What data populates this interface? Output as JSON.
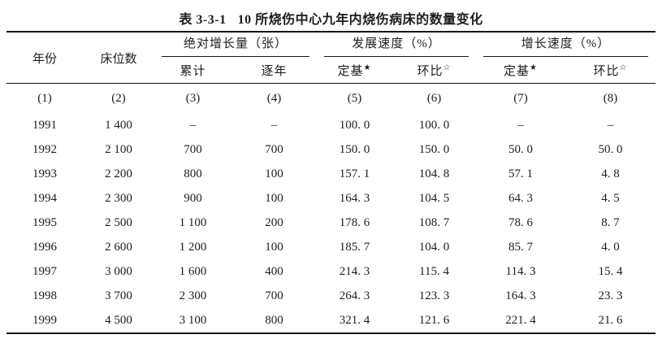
{
  "title": {
    "label": "表 3-3-1",
    "text": "10 所烧伤中心九年内烧伤病床的数量变化"
  },
  "table": {
    "stub_headers": [
      "年份",
      "床位数"
    ],
    "groups": [
      {
        "label": "绝对增长量（张）",
        "subs": [
          {
            "text": "累计",
            "star": ""
          },
          {
            "text": "逐年",
            "star": ""
          }
        ]
      },
      {
        "label": "发展速度（%）",
        "subs": [
          {
            "text": "定基",
            "star": "★"
          },
          {
            "text": "环比",
            "star": "☆"
          }
        ]
      },
      {
        "label": "增长速度（%）",
        "subs": [
          {
            "text": "定基",
            "star": "★"
          },
          {
            "text": "环比",
            "star": "☆"
          }
        ]
      }
    ],
    "col_indices": [
      "(1)",
      "(2)",
      "(3)",
      "(4)",
      "(5)",
      "(6)",
      "(7)",
      "(8)"
    ],
    "rows": [
      [
        "1991",
        "1 400",
        "–",
        "–",
        "100. 0",
        "100. 0",
        "–",
        "–"
      ],
      [
        "1992",
        "2 100",
        "700",
        "700",
        "150. 0",
        "150. 0",
        "50. 0",
        "50. 0"
      ],
      [
        "1993",
        "2 200",
        "800",
        "100",
        "157. 1",
        "104. 8",
        "57. 1",
        "4. 8"
      ],
      [
        "1994",
        "2 300",
        "900",
        "100",
        "164. 3",
        "104. 5",
        "64. 3",
        "4. 5"
      ],
      [
        "1995",
        "2 500",
        "1 100",
        "200",
        "178. 6",
        "108. 7",
        "78. 6",
        "8. 7"
      ],
      [
        "1996",
        "2 600",
        "1 200",
        "100",
        "185. 7",
        "104. 0",
        "85. 7",
        "4. 0"
      ],
      [
        "1997",
        "3 000",
        "1 600",
        "400",
        "214. 3",
        "115. 4",
        "114. 3",
        "15. 4"
      ],
      [
        "1998",
        "3 700",
        "2 300",
        "700",
        "264. 3",
        "123. 3",
        "164. 3",
        "23. 3"
      ],
      [
        "1999",
        "4 500",
        "3 100",
        "800",
        "321. 4",
        "121. 6",
        "221. 4",
        "21. 6"
      ]
    ]
  },
  "colors": {
    "text": "#1d1d1f",
    "line": "#151515",
    "background": "#ffffff"
  }
}
